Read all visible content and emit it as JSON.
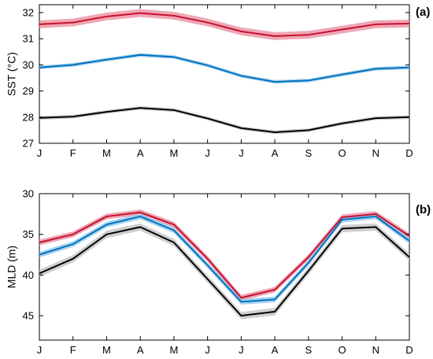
{
  "chart_data": [
    {
      "type": "line",
      "panel_label": "(a)",
      "ylabel": "SST (°C)",
      "xlabel": "",
      "x": [
        "J",
        "F",
        "M",
        "A",
        "M",
        "J",
        "J",
        "A",
        "S",
        "O",
        "N",
        "D"
      ],
      "ylim": [
        27,
        32.3
      ],
      "yticks": [
        27,
        28,
        29,
        30,
        31,
        32
      ],
      "y_reversed": false,
      "grid": false,
      "series": [
        {
          "color": "#c8102e",
          "band_color": "#e88a9c",
          "band": 0.15,
          "values": [
            31.55,
            31.62,
            31.85,
            31.98,
            31.88,
            31.62,
            31.28,
            31.1,
            31.15,
            31.35,
            31.55,
            31.58
          ]
        },
        {
          "color": "#0072bd",
          "band_color": "#8cc4ec",
          "band": 0.07,
          "values": [
            29.9,
            30.0,
            30.2,
            30.38,
            30.3,
            29.98,
            29.58,
            29.35,
            29.4,
            29.63,
            29.85,
            29.9
          ]
        },
        {
          "color": "#000000",
          "band_color": "#bfbfbf",
          "band": 0.07,
          "values": [
            27.97,
            28.02,
            28.2,
            28.35,
            28.27,
            27.95,
            27.58,
            27.42,
            27.5,
            27.76,
            27.96,
            28.0
          ]
        }
      ]
    },
    {
      "type": "line",
      "panel_label": "(b)",
      "ylabel": "MLD (m)",
      "xlabel": "",
      "x": [
        "J",
        "F",
        "M",
        "A",
        "M",
        "J",
        "J",
        "A",
        "S",
        "O",
        "N",
        "D"
      ],
      "ylim": [
        30,
        48
      ],
      "yticks": [
        30,
        35,
        40,
        45
      ],
      "y_reversed": true,
      "grid": false,
      "series": [
        {
          "color": "#c8102e",
          "band_color": "#e88a9c",
          "band": 0.35,
          "values": [
            36.0,
            35.0,
            32.8,
            32.3,
            33.8,
            38.0,
            42.8,
            41.8,
            37.8,
            32.9,
            32.5,
            35.2
          ]
        },
        {
          "color": "#0072bd",
          "band_color": "#8cc4ec",
          "band": 0.35,
          "values": [
            37.5,
            36.2,
            33.8,
            32.8,
            34.5,
            38.8,
            43.3,
            43.0,
            38.5,
            33.2,
            32.8,
            35.8
          ]
        },
        {
          "color": "#000000",
          "band_color": "#bfbfbf",
          "band": 0.45,
          "values": [
            39.8,
            38.0,
            35.0,
            34.1,
            36.0,
            40.5,
            45.0,
            44.5,
            39.5,
            34.3,
            34.1,
            37.8
          ]
        }
      ]
    }
  ]
}
